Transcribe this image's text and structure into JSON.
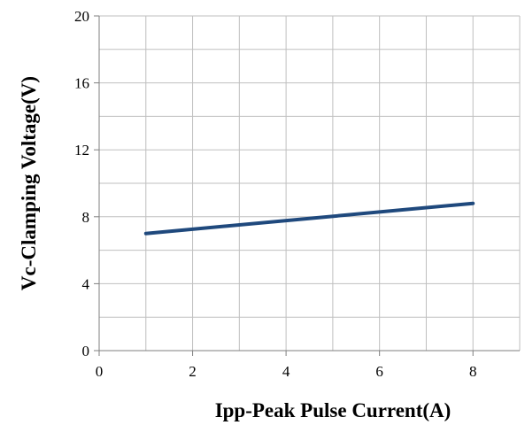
{
  "chart_data": {
    "type": "line",
    "title": "",
    "xlabel": "Ipp-Peak Pulse Current(A)",
    "ylabel": "Vc-Clamping Voltage(V)",
    "xlim": [
      0,
      9
    ],
    "ylim": [
      0,
      20
    ],
    "x_ticks": [
      0,
      2,
      4,
      6,
      8
    ],
    "x_tick_labels": [
      "0",
      "2",
      "4",
      "6",
      "8"
    ],
    "y_ticks": [
      0,
      4,
      8,
      12,
      16,
      20
    ],
    "y_tick_labels": [
      "0",
      "4",
      "8",
      "12",
      "16",
      "20"
    ],
    "x_minor_grid_step": 1,
    "y_minor_grid_step": 2,
    "grid": true,
    "legend": "none",
    "series": [
      {
        "color": "#1f497d",
        "x": [
          1,
          8
        ],
        "y": [
          7.0,
          8.8
        ]
      }
    ]
  }
}
